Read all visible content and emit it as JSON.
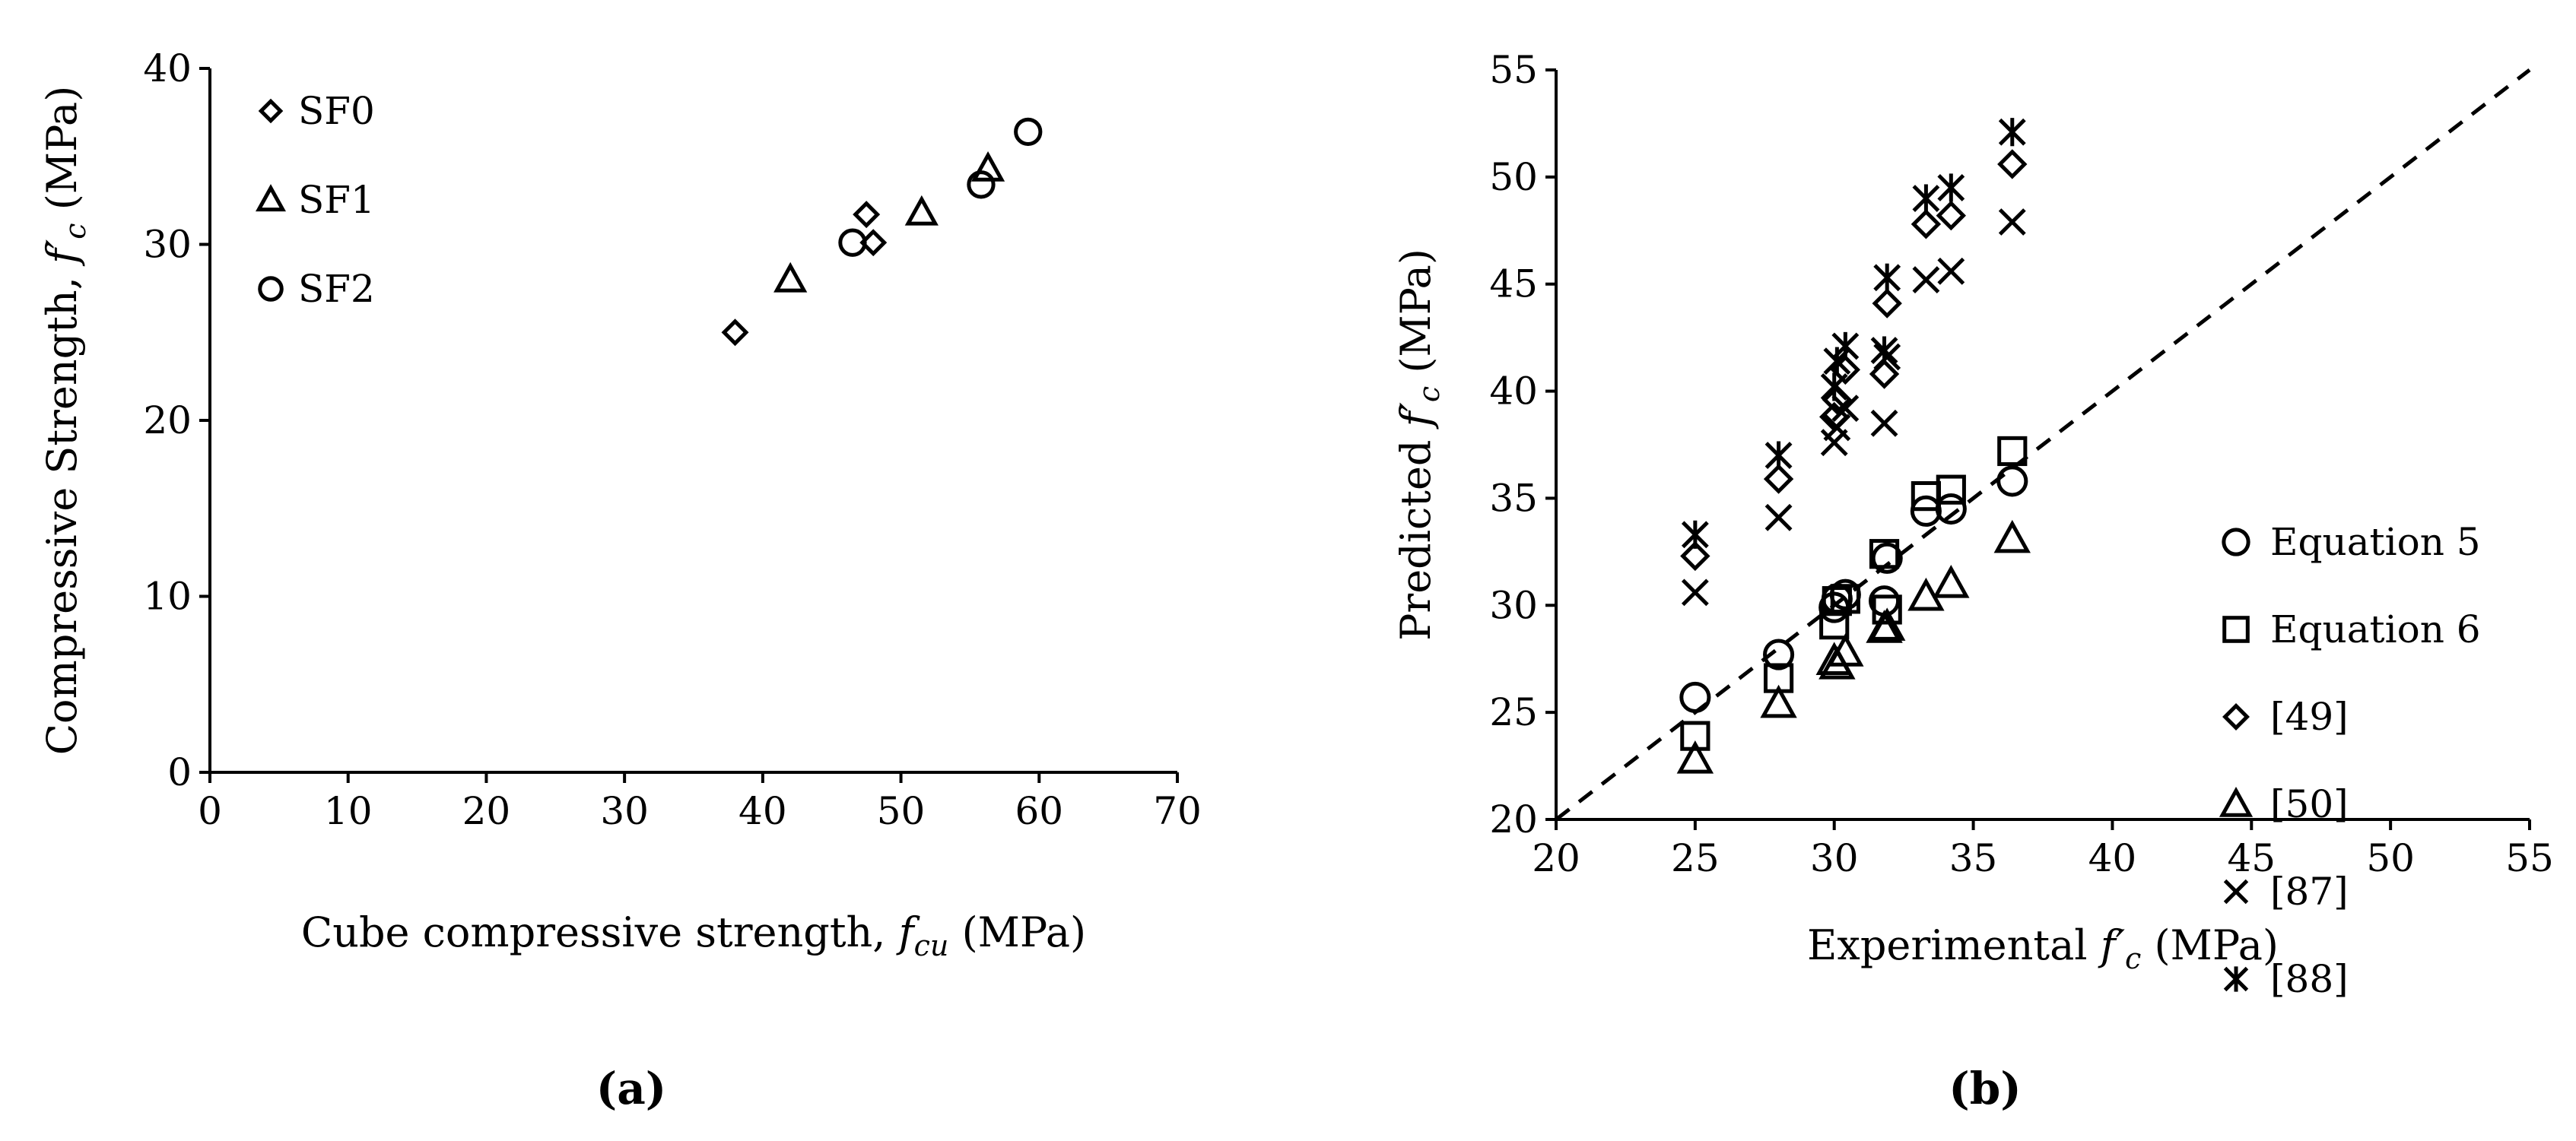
{
  "chart_data": [
    {
      "type": "scatter",
      "panel_label": "(a)",
      "xlabel": "Cube compressive strength, ",
      "xlabel_symbol": "f",
      "xlabel_sub": "cu",
      "xlabel_unit": " (MPa)",
      "ylabel": "Compressive Strength, ",
      "ylabel_symbol": "f′",
      "ylabel_sub": "c",
      "ylabel_unit": " (MPa)",
      "xlim": [
        0,
        70
      ],
      "ylim": [
        0,
        40
      ],
      "xticks": [
        0,
        10,
        20,
        30,
        40,
        50,
        60,
        70
      ],
      "yticks": [
        0,
        10,
        20,
        30,
        40
      ],
      "legend_position": "top-left",
      "series": [
        {
          "name": "SF0",
          "marker": "diamond",
          "points": [
            [
              38.0,
              25.0
            ],
            [
              47.5,
              31.7
            ],
            [
              48.0,
              30.1
            ]
          ]
        },
        {
          "name": "SF1",
          "marker": "triangle",
          "points": [
            [
              42.0,
              28.0
            ],
            [
              51.5,
              31.8
            ],
            [
              56.3,
              34.3
            ]
          ]
        },
        {
          "name": "SF2",
          "marker": "circle",
          "points": [
            [
              46.5,
              30.1
            ],
            [
              55.8,
              33.4
            ],
            [
              59.2,
              36.4
            ]
          ]
        }
      ]
    },
    {
      "type": "scatter",
      "panel_label": "(b)",
      "xlabel": "Experimental ",
      "xlabel_symbol": "f′",
      "xlabel_sub": "c",
      "xlabel_unit": " (MPa)",
      "ylabel": "Predicted ",
      "ylabel_symbol": "f′",
      "ylabel_sub": "c",
      "ylabel_unit": " (MPa)",
      "xlim": [
        20,
        55
      ],
      "ylim": [
        20,
        55
      ],
      "xticks": [
        20,
        25,
        30,
        35,
        40,
        45,
        50,
        55
      ],
      "yticks": [
        20,
        25,
        30,
        35,
        40,
        45,
        50,
        55
      ],
      "legend_position": "bottom-right",
      "reference_line": {
        "style": "dashed",
        "from": [
          20,
          20
        ],
        "to": [
          55,
          55
        ]
      },
      "series": [
        {
          "name": "Equation 5",
          "marker": "circle",
          "points": [
            [
              25.0,
              25.7
            ],
            [
              28.0,
              27.7
            ],
            [
              30.0,
              29.9
            ],
            [
              30.1,
              30.3
            ],
            [
              30.4,
              30.5
            ],
            [
              31.8,
              30.2
            ],
            [
              31.9,
              32.2
            ],
            [
              33.3,
              34.4
            ],
            [
              34.2,
              34.5
            ],
            [
              36.4,
              35.8
            ]
          ]
        },
        {
          "name": "Equation 6",
          "marker": "square",
          "points": [
            [
              25.0,
              23.9
            ],
            [
              28.0,
              26.6
            ],
            [
              30.0,
              29.1
            ],
            [
              30.1,
              30.2
            ],
            [
              30.4,
              30.3
            ],
            [
              31.8,
              32.4
            ],
            [
              31.9,
              29.8
            ],
            [
              33.3,
              35.1
            ],
            [
              34.2,
              35.4
            ],
            [
              36.4,
              37.2
            ]
          ]
        },
        {
          "name": "[49]",
          "marker": "diamond",
          "points": [
            [
              25.0,
              32.3
            ],
            [
              28.0,
              35.9
            ],
            [
              30.0,
              38.8
            ],
            [
              30.1,
              39.6
            ],
            [
              30.4,
              41.0
            ],
            [
              31.8,
              40.8
            ],
            [
              31.9,
              44.1
            ],
            [
              33.3,
              47.8
            ],
            [
              34.2,
              48.2
            ],
            [
              36.4,
              50.6
            ]
          ]
        },
        {
          "name": "[50]",
          "marker": "triangle",
          "points": [
            [
              25.0,
              22.8
            ],
            [
              28.0,
              25.4
            ],
            [
              30.0,
              27.4
            ],
            [
              30.1,
              27.2
            ],
            [
              30.4,
              27.8
            ],
            [
              31.8,
              28.9
            ],
            [
              31.9,
              29.0
            ],
            [
              33.3,
              30.4
            ],
            [
              34.2,
              31.0
            ],
            [
              36.4,
              33.1
            ]
          ]
        },
        {
          "name": "[87]",
          "marker": "x",
          "points": [
            [
              25.0,
              30.6
            ],
            [
              28.0,
              34.1
            ],
            [
              30.0,
              37.6
            ],
            [
              30.1,
              38.3
            ],
            [
              30.4,
              39.2
            ],
            [
              31.8,
              38.5
            ],
            [
              31.9,
              41.6
            ],
            [
              33.3,
              45.2
            ],
            [
              34.2,
              45.6
            ],
            [
              36.4,
              47.9
            ]
          ]
        },
        {
          "name": "[88]",
          "marker": "star",
          "points": [
            [
              25.0,
              33.3
            ],
            [
              28.0,
              37.0
            ],
            [
              30.0,
              40.2
            ],
            [
              30.1,
              41.4
            ],
            [
              30.4,
              42.1
            ],
            [
              31.8,
              41.9
            ],
            [
              31.9,
              45.3
            ],
            [
              33.3,
              49.0
            ],
            [
              34.2,
              49.5
            ],
            [
              36.4,
              52.1
            ]
          ]
        }
      ]
    }
  ]
}
